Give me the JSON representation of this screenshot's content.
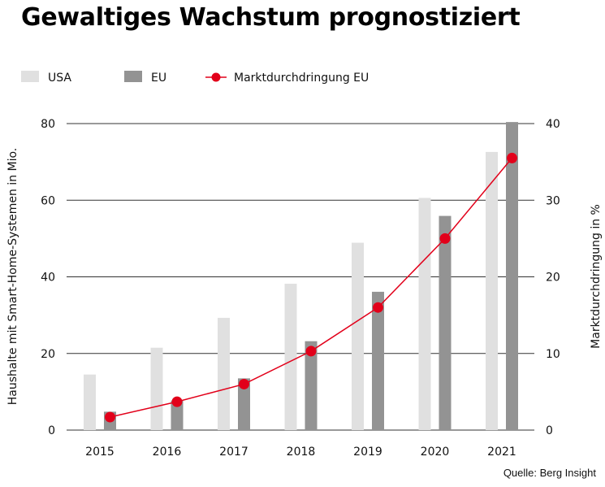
{
  "title": "Gewaltiges Wachstum prognostiziert",
  "source": "Quelle: Berg Insight",
  "colors": {
    "usa": "#e0e0e0",
    "eu": "#939393",
    "line": "#e2001a",
    "grid": "#333333"
  },
  "chart_data": {
    "type": "bar",
    "categories": [
      "2015",
      "2016",
      "2017",
      "2018",
      "2019",
      "2020",
      "2021"
    ],
    "series": [
      {
        "name": "USA",
        "values": [
          14.5,
          21.5,
          29.3,
          38.2,
          48.9,
          60.6,
          72.6
        ]
      },
      {
        "name": "EU",
        "values": [
          4.8,
          7.7,
          13.5,
          23.2,
          36.1,
          55.9,
          80.4
        ]
      }
    ],
    "line_series": {
      "name": "Marktdurchdringung EU",
      "axis": "right",
      "values": [
        1.7,
        3.7,
        6.0,
        10.3,
        16.0,
        25.0,
        35.5
      ]
    },
    "ylabel": "Haushalte mit Smart-Home-Systemen in Mio.",
    "y2label": "Marktdurchdringung in %",
    "ylim": [
      0,
      80
    ],
    "y2lim": [
      0,
      40
    ],
    "yticks": [
      "0",
      "20",
      "40",
      "60",
      "80"
    ],
    "y2ticks": [
      "0",
      "10",
      "20",
      "30",
      "40"
    ],
    "grid": true,
    "legend_position": "top-left"
  }
}
